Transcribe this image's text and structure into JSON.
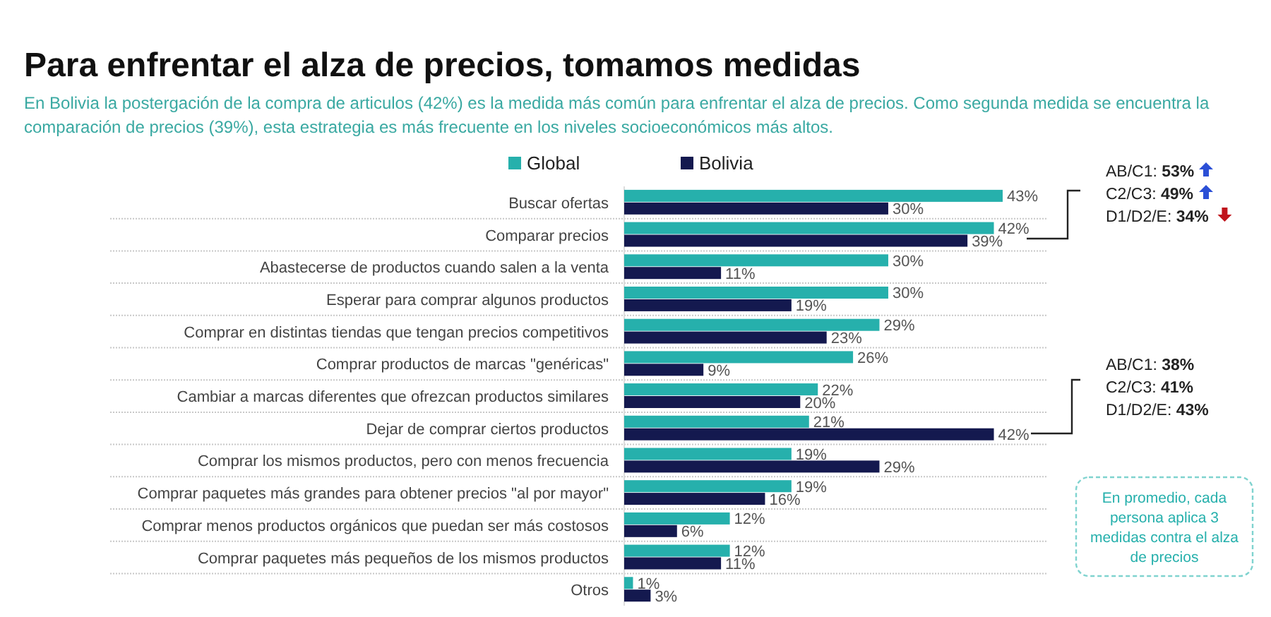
{
  "chart_data": {
    "type": "bar",
    "orientation": "horizontal",
    "title": "Para enfrentar el alza de precios, tomamos medidas",
    "subtitle": "En Bolivia la postergación de la compra de articulos (42%) es la medida más común para enfrentar el alza de precios. Como segunda medida se encuentra la comparación de precios (39%), esta estrategia es más frecuente en los niveles socioeconómicos más altos.",
    "categories": [
      "Buscar ofertas",
      "Comparar precios",
      "Abastecerse de productos cuando salen a la venta",
      "Esperar para comprar algunos productos",
      "Comprar en distintas tiendas que tengan precios competitivos",
      "Comprar productos de marcas \"genéricas\"",
      "Cambiar a marcas diferentes que ofrezcan productos similares",
      "Dejar de comprar ciertos productos",
      "Comprar los mismos productos, pero con menos frecuencia",
      "Comprar paquetes más grandes para obtener precios \"al por mayor\"",
      "Comprar menos productos orgánicos que puedan ser más costosos",
      "Comprar paquetes más pequeños de los mismos productos",
      "Otros"
    ],
    "series": [
      {
        "name": "Global",
        "color": "#26b0ac",
        "values": [
          43,
          42,
          30,
          30,
          29,
          26,
          22,
          21,
          19,
          19,
          12,
          12,
          1
        ],
        "value_labels": [
          "43%",
          "42%",
          "30%",
          "30%",
          "29%",
          "26%",
          "22%",
          "21%",
          "19%",
          "19%",
          "12%",
          "12%",
          "1%"
        ]
      },
      {
        "name": "Bolivia",
        "color": "#14194f",
        "values": [
          30,
          39,
          11,
          19,
          23,
          9,
          20,
          42,
          29,
          16,
          6,
          11,
          3
        ],
        "value_labels": [
          "30%",
          "39%",
          "11%",
          "19%",
          "23%",
          "9%",
          "20%",
          "42%",
          "29%",
          "16%",
          "6%",
          "11%",
          "3%"
        ]
      }
    ],
    "legend": "top",
    "grid": "y",
    "annotations": [
      "AB/C1: 53%",
      "C2/C3: 49%",
      "D1/D2/E: 34%",
      "AB/C1: 38%",
      "C2/C3: 41%",
      "D1/D2/E: 43%",
      "En promedio, cada persona aplica 3 medidas contra el alza de precios"
    ]
  }
}
